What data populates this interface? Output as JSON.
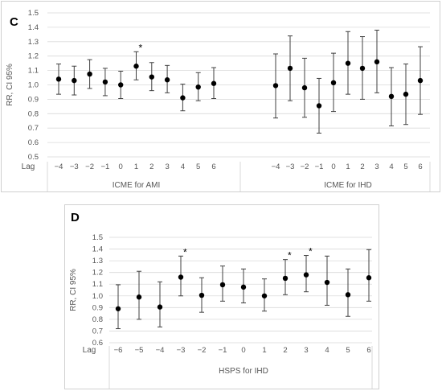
{
  "chart_data": [
    {
      "type": "scatter",
      "panel_label": "C",
      "ylabel": "RR, CI 95%",
      "xlabel_prefix": "Lag",
      "ylim": [
        0.5,
        1.5
      ],
      "yticks": [
        "0.5",
        "0.6",
        "0.7",
        "0.8",
        "0.9",
        "1.0",
        "1.1",
        "1.2",
        "1.3",
        "1.4",
        "1.5"
      ],
      "grid": true,
      "error_bars": true,
      "groups": [
        {
          "name": "ICME for AMI",
          "lags": [
            "−4",
            "−3",
            "−2",
            "−1",
            "0",
            "1",
            "2",
            "3",
            "4",
            "5",
            "6"
          ],
          "values": [
            1.04,
            1.03,
            1.075,
            1.02,
            1.0,
            1.13,
            1.055,
            1.035,
            0.91,
            0.985,
            1.01
          ],
          "lower": [
            0.935,
            0.93,
            0.975,
            0.925,
            0.905,
            1.035,
            0.96,
            0.945,
            0.82,
            0.89,
            0.905
          ],
          "upper": [
            1.145,
            1.13,
            1.175,
            1.115,
            1.095,
            1.23,
            1.155,
            1.135,
            1.005,
            1.085,
            1.12
          ],
          "stars": [
            false,
            false,
            false,
            false,
            false,
            true,
            false,
            false,
            false,
            false,
            false
          ]
        },
        {
          "name": "ICME for IHD",
          "lags": [
            "−4",
            "−3",
            "−2",
            "−1",
            "0",
            "1",
            "2",
            "3",
            "4",
            "5",
            "6"
          ],
          "values": [
            0.995,
            1.115,
            0.98,
            0.855,
            1.015,
            1.15,
            1.115,
            1.16,
            0.92,
            0.935,
            1.03
          ],
          "lower": [
            0.77,
            0.89,
            0.775,
            0.665,
            0.815,
            0.935,
            0.9,
            0.945,
            0.715,
            0.725,
            0.795
          ],
          "upper": [
            1.215,
            1.34,
            1.185,
            1.045,
            1.22,
            1.37,
            1.335,
            1.38,
            1.12,
            1.145,
            1.265
          ],
          "stars": [
            false,
            false,
            false,
            false,
            false,
            false,
            false,
            false,
            false,
            false,
            false
          ]
        }
      ]
    },
    {
      "type": "scatter",
      "panel_label": "D",
      "ylabel": "RR, CI 95%",
      "xlabel_prefix": "Lag",
      "ylim": [
        0.6,
        1.5
      ],
      "yticks": [
        "0.6",
        "0.7",
        "0.8",
        "0.9",
        "1.0",
        "1.1",
        "1.2",
        "1.3",
        "1.4",
        "1.5"
      ],
      "grid": true,
      "error_bars": true,
      "groups": [
        {
          "name": "HSPS for IHD",
          "lags": [
            "−6",
            "−5",
            "−4",
            "−3",
            "−2",
            "−1",
            "0",
            "1",
            "2",
            "3",
            "4",
            "5",
            "6"
          ],
          "values": [
            0.89,
            0.99,
            0.905,
            1.16,
            1.005,
            1.095,
            1.075,
            1.0,
            1.15,
            1.18,
            1.115,
            1.01,
            1.155
          ],
          "lower": [
            0.72,
            0.8,
            0.735,
            1.0,
            0.86,
            0.955,
            0.94,
            0.87,
            1.01,
            1.035,
            0.92,
            0.825,
            0.955
          ],
          "upper": [
            1.095,
            1.21,
            1.12,
            1.34,
            1.155,
            1.255,
            1.23,
            1.145,
            1.31,
            1.345,
            1.34,
            1.23,
            1.395
          ],
          "stars": [
            false,
            false,
            false,
            true,
            false,
            false,
            false,
            false,
            true,
            true,
            false,
            false,
            false
          ]
        }
      ]
    }
  ]
}
